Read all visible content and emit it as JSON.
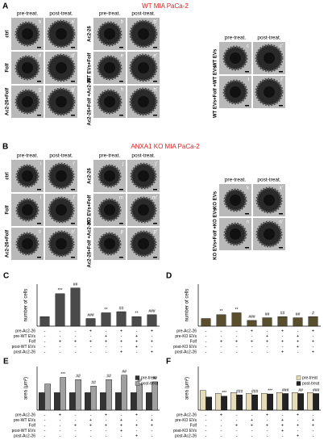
{
  "panel_a": {
    "label": "A",
    "title": "WT MIA PaCa-2",
    "groups": [
      {
        "headers": [
          "pre-treat.",
          "post-treat."
        ],
        "rows": [
          {
            "label": "ctrl",
            "tiles": [
              "a",
              "a'"
            ]
          },
          {
            "label": "Folf",
            "tiles": [
              "d",
              "d'"
            ]
          },
          {
            "label": "Ac2-26+Folf",
            "tiles": [
              "g",
              "g'"
            ]
          }
        ]
      },
      {
        "headers": [
          "pre-treat.",
          "post-treat."
        ],
        "rows": [
          {
            "label": "Ac2-26",
            "tiles": [
              "b",
              "b'"
            ]
          },
          {
            "label": "WT EVs+Folf",
            "tiles": [
              "e",
              "e'"
            ]
          },
          {
            "label": "Ac2-26+Folf +Ac2-26",
            "tiles": [
              "h",
              "h'"
            ]
          }
        ]
      },
      {
        "headers": [
          "pre-treat.",
          "post-treat."
        ],
        "rows": [
          {
            "label": "WT EVs",
            "tiles": [
              "c",
              "c'"
            ]
          },
          {
            "label": "WT EVs+Folf +WT EVs",
            "tiles": [
              "f",
              "f'"
            ]
          }
        ]
      }
    ]
  },
  "panel_b": {
    "label": "B",
    "title": "ANXA1 KO MIA PaCa-2",
    "groups": [
      {
        "headers": [
          "pre-treat.",
          "post-treat."
        ],
        "rows": [
          {
            "label": "ctrl",
            "tiles": [
              "i",
              "i'"
            ]
          },
          {
            "label": "Folf",
            "tiles": [
              "l",
              "l'"
            ]
          },
          {
            "label": "Ac2-26+Folf",
            "tiles": [
              "o",
              "o'"
            ]
          }
        ]
      },
      {
        "headers": [
          "pre-treat.",
          "post-treat."
        ],
        "rows": [
          {
            "label": "Ac2-26",
            "tiles": [
              "j",
              "j'"
            ]
          },
          {
            "label": "KO EVs+Folf",
            "tiles": [
              "m",
              "m'"
            ]
          },
          {
            "label": "Ac2-26+Folf +Ac2-26",
            "tiles": [
              "p",
              "p'"
            ]
          }
        ]
      },
      {
        "headers": [
          "pre-treat.",
          "post-treat."
        ],
        "rows": [
          {
            "label": "KO EVs",
            "tiles": [
              "k",
              "k'"
            ]
          },
          {
            "label": "KO EVs+Folf +KO EVs",
            "tiles": [
              "n",
              "n'"
            ]
          }
        ]
      }
    ]
  },
  "chart_data": [
    {
      "type": "bar",
      "label": "C",
      "y_label": "number of cells",
      "ylim": [
        0,
        110
      ],
      "color": "#4a4a4a",
      "values": [
        25,
        85,
        100,
        20,
        35,
        38,
        25,
        30
      ],
      "annotations": [
        null,
        "***",
        "##",
        "###",
        "**",
        "##",
        "**",
        "###"
      ],
      "conditions": [
        {
          "name": "pre-Ac2-26",
          "signs": [
            "-",
            "-",
            "-",
            "+",
            "-",
            "+",
            "-",
            "+"
          ]
        },
        {
          "name": "pre-WT EVs",
          "signs": [
            "-",
            "-",
            "-",
            "-",
            "+",
            "-",
            "+",
            "-"
          ]
        },
        {
          "name": "Folf",
          "signs": [
            "-",
            "+",
            "+",
            "+",
            "+",
            "+",
            "+",
            "+"
          ]
        },
        {
          "name": "post-WT EVs",
          "signs": [
            "-",
            "-",
            "-",
            "-",
            "-",
            "-",
            "+",
            "-"
          ]
        },
        {
          "name": "post-Ac2-26",
          "signs": [
            "-",
            "-",
            "-",
            "-",
            "-",
            "+",
            "-",
            "+"
          ]
        }
      ]
    },
    {
      "type": "bar",
      "label": "D",
      "y_label": "number of cells",
      "ylim": [
        0,
        110
      ],
      "color": "#5a4f2c",
      "values": [
        20,
        30,
        35,
        15,
        22,
        25,
        22,
        25
      ],
      "annotations": [
        null,
        "**",
        "**",
        "###",
        "##",
        "##",
        "##",
        "#"
      ],
      "conditions": [
        {
          "name": "pre-Ac2-26",
          "signs": [
            "-",
            "-",
            "-",
            "+",
            "-",
            "+",
            "-",
            "+"
          ]
        },
        {
          "name": "pre-KO EVs",
          "signs": [
            "-",
            "-",
            "-",
            "-",
            "+",
            "-",
            "+",
            "-"
          ]
        },
        {
          "name": "Folf",
          "signs": [
            "-",
            "+",
            "+",
            "+",
            "+",
            "+",
            "+",
            "+"
          ]
        },
        {
          "name": "post-KO EVs",
          "signs": [
            "-",
            "-",
            "-",
            "-",
            "-",
            "-",
            "+",
            "-"
          ]
        },
        {
          "name": "post-Ac2-26",
          "signs": [
            "-",
            "-",
            "-",
            "-",
            "-",
            "+",
            "-",
            "+"
          ]
        }
      ]
    },
    {
      "type": "grouped_bar",
      "label": "E",
      "y_label": "area (μm²)",
      "ylim": [
        0,
        100
      ],
      "series": [
        {
          "name": "pre-treat",
          "color": "#333333",
          "values": [
            40,
            40,
            40,
            40,
            40,
            40,
            40,
            40
          ]
        },
        {
          "name": "post-treat",
          "color": "#a0a0a0",
          "values": [
            60,
            75,
            70,
            55,
            70,
            80,
            60,
            65
          ],
          "annotations": [
            null,
            "***",
            "##",
            "##",
            "##",
            "##",
            "##",
            "##"
          ]
        }
      ],
      "conditions": [
        {
          "name": "pre-Ac2-26",
          "signs": [
            "-",
            "+",
            "-",
            "-",
            "+",
            "-",
            "+",
            "-"
          ]
        },
        {
          "name": "pre-WT EVs",
          "signs": [
            "-",
            "-",
            "-",
            "+",
            "-",
            "+",
            "-",
            "+"
          ]
        },
        {
          "name": "Folf",
          "signs": [
            "-",
            "-",
            "+",
            "+",
            "+",
            "+",
            "+",
            "+"
          ]
        },
        {
          "name": "post-WT EVs",
          "signs": [
            "-",
            "-",
            "-",
            "-",
            "-",
            "+",
            "-",
            "-"
          ]
        },
        {
          "name": "post-Ac2-26",
          "signs": [
            "-",
            "-",
            "-",
            "-",
            "-",
            "-",
            "+",
            "-"
          ]
        }
      ]
    },
    {
      "type": "grouped_bar",
      "label": "F",
      "y_label": "area (μm²)",
      "ylim": [
        0,
        100
      ],
      "series": [
        {
          "name": "pre-treat",
          "color": "#e6dcb8",
          "values": [
            45,
            38,
            40,
            38,
            38,
            40,
            40,
            40
          ]
        },
        {
          "name": "post-treat",
          "color": "#222222",
          "values": [
            30,
            32,
            35,
            35,
            37,
            38,
            38,
            38
          ],
          "annotations": [
            null,
            "***",
            "###",
            "###",
            "***",
            "###",
            "##",
            "###"
          ]
        }
      ],
      "conditions": [
        {
          "name": "pre-Ac2-26",
          "signs": [
            "-",
            "+",
            "-",
            "-",
            "+",
            "-",
            "+",
            "-"
          ]
        },
        {
          "name": "pre-KO EVs",
          "signs": [
            "-",
            "-",
            "-",
            "+",
            "-",
            "+",
            "-",
            "+"
          ]
        },
        {
          "name": "Folf",
          "signs": [
            "-",
            "-",
            "+",
            "+",
            "+",
            "+",
            "+",
            "+"
          ]
        },
        {
          "name": "post-KO EVs",
          "signs": [
            "-",
            "-",
            "-",
            "-",
            "-",
            "+",
            "-",
            "-"
          ]
        },
        {
          "name": "post-Ac2-26",
          "signs": [
            "-",
            "-",
            "-",
            "-",
            "-",
            "-",
            "+",
            "-"
          ]
        }
      ]
    }
  ]
}
